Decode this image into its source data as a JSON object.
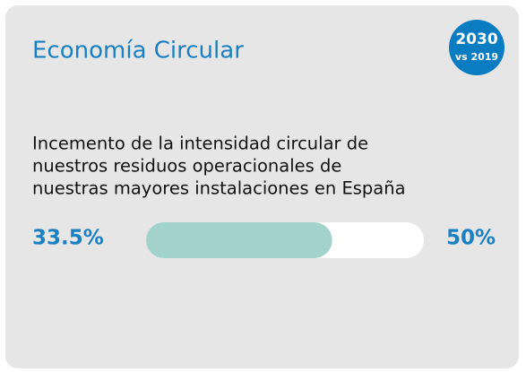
{
  "card": {
    "title": "Economía Circular",
    "badge": {
      "year": "2030",
      "subtitle": "vs 2019"
    },
    "description": [
      "Incemento de la intensidad circular de",
      "nuestros residuos operacionales de",
      "nuestras mayores instalaciones en España"
    ],
    "progress": {
      "value": 33.5,
      "value_label": "33.5%",
      "max": 50,
      "max_label": "50%",
      "track_color": "#ffffff",
      "fill_color": "#a3d2cc"
    }
  }
}
